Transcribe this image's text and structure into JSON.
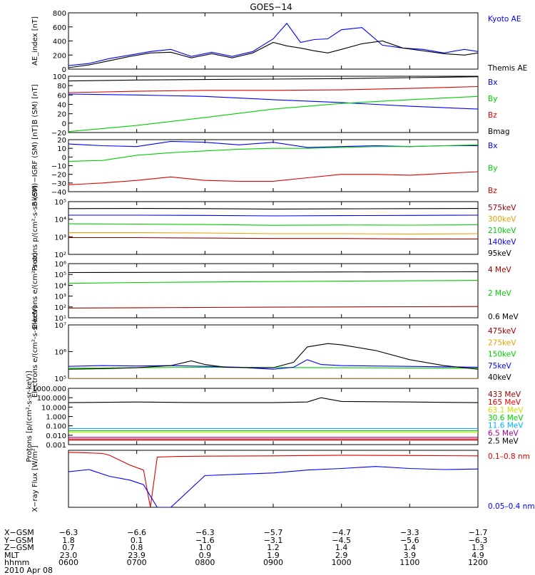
{
  "title": "GOES−14",
  "colors": {
    "black": "#000000",
    "blue": "#0000ff",
    "green": "#00d000",
    "red": "#e00000",
    "orange": "#e8a000",
    "darkred": "#a00000",
    "cyan": "#00b0ff",
    "purple": "#a000a0",
    "lime": "#c8e600"
  },
  "chart_data": [
    {
      "id": "ae",
      "type": "line",
      "ylabel": "AE_index [nT]",
      "ylim": [
        0,
        800
      ],
      "log": false,
      "yticks": [
        "0",
        "200",
        "400",
        "600",
        "800"
      ],
      "series": [
        {
          "name": "Kyoto AE",
          "color": "#0000ff",
          "x": [
            6.0,
            6.3,
            6.6,
            6.9,
            7.2,
            7.5,
            7.8,
            8.1,
            8.4,
            8.7,
            9.0,
            9.2,
            9.4,
            9.6,
            9.8,
            10.0,
            10.3,
            10.6,
            10.9,
            11.2,
            11.5,
            11.8,
            12.0
          ],
          "y": [
            50,
            80,
            150,
            200,
            250,
            280,
            180,
            240,
            180,
            250,
            430,
            650,
            380,
            420,
            430,
            560,
            590,
            340,
            300,
            280,
            230,
            280,
            250
          ]
        },
        {
          "name": "Themis AE",
          "color": "#000000",
          "x": [
            6.0,
            6.3,
            6.6,
            6.9,
            7.2,
            7.5,
            7.8,
            8.1,
            8.4,
            8.7,
            9.0,
            9.2,
            9.4,
            9.6,
            9.8,
            10.0,
            10.3,
            10.6,
            10.9,
            11.2,
            11.5,
            11.8,
            12.0
          ],
          "y": [
            20,
            60,
            120,
            180,
            230,
            240,
            160,
            220,
            160,
            230,
            380,
            330,
            300,
            260,
            230,
            280,
            360,
            400,
            300,
            260,
            220,
            200,
            230
          ]
        }
      ],
      "legend": [
        {
          "label": "Kyoto AE",
          "color": "#0000ff"
        },
        {
          "label": "Themis AE",
          "color": "#000000"
        }
      ]
    },
    {
      "id": "bsm",
      "type": "line",
      "ylabel": "B (SM) [nT]",
      "ylim": [
        -20,
        100
      ],
      "log": false,
      "yticks": [
        "−20",
        "0",
        "20",
        "40",
        "60",
        "80",
        "100"
      ],
      "series": [
        {
          "name": "Bx",
          "color": "#0000ff",
          "x": [
            6,
            7,
            8,
            9,
            10,
            11,
            12
          ],
          "y": [
            62,
            60,
            57,
            50,
            44,
            36,
            30
          ]
        },
        {
          "name": "By",
          "color": "#00d000",
          "x": [
            6,
            7,
            8,
            9,
            10,
            11,
            12
          ],
          "y": [
            -18,
            -5,
            12,
            30,
            42,
            50,
            57
          ]
        },
        {
          "name": "Bz",
          "color": "#e00000",
          "x": [
            6,
            7,
            8,
            9,
            10,
            11,
            12
          ],
          "y": [
            65,
            68,
            70,
            70,
            71,
            74,
            78
          ]
        },
        {
          "name": "Bmag",
          "color": "#000000",
          "x": [
            6,
            7,
            8,
            9,
            10,
            11,
            12
          ],
          "y": [
            90,
            92,
            93,
            94,
            95,
            97,
            99
          ]
        }
      ],
      "legend": [
        {
          "label": "Bx",
          "color": "#0000ff"
        },
        {
          "label": "By",
          "color": "#00d000"
        },
        {
          "label": "Bz",
          "color": "#e00000"
        },
        {
          "label": "Bmag",
          "color": "#000000"
        }
      ]
    },
    {
      "id": "bigrf",
      "type": "line",
      "ylabel": "B (SM)−IGRF (SM) [nT]",
      "ylim": [
        -40,
        20
      ],
      "log": false,
      "yticks": [
        "−40",
        "−30",
        "−20",
        "−10",
        "0",
        "10",
        "20"
      ],
      "series": [
        {
          "name": "Bx",
          "color": "#0000ff",
          "x": [
            6,
            6.5,
            7.0,
            7.5,
            8.0,
            8.5,
            9.0,
            9.5,
            10,
            10.5,
            11,
            11.5,
            12
          ],
          "y": [
            15,
            13,
            12,
            18,
            17,
            14,
            17,
            11,
            12,
            13,
            12,
            13,
            13
          ]
        },
        {
          "name": "By",
          "color": "#00d000",
          "x": [
            6,
            6.5,
            7.0,
            7.5,
            8.0,
            8.5,
            9.0,
            9.5,
            10,
            10.5,
            11,
            11.5,
            12
          ],
          "y": [
            -5,
            -4,
            2,
            5,
            7,
            9,
            10,
            10,
            11,
            12,
            12,
            13,
            14
          ]
        },
        {
          "name": "Bz",
          "color": "#e00000",
          "x": [
            6,
            6.5,
            7.0,
            7.5,
            8.0,
            8.5,
            9.0,
            9.5,
            10,
            10.5,
            11,
            11.5,
            12
          ],
          "y": [
            -32,
            -30,
            -27,
            -23,
            -27,
            -28,
            -28,
            -24,
            -20,
            -20,
            -21,
            -19,
            -17
          ]
        }
      ],
      "legend": [
        {
          "label": "Bx",
          "color": "#0000ff"
        },
        {
          "label": "By",
          "color": "#00d000"
        },
        {
          "label": "Bz",
          "color": "#e00000"
        }
      ]
    },
    {
      "id": "protons_low",
      "type": "line",
      "ylabel": "Protons p/(cm²-s-sr-keV)",
      "ylim": [
        100,
        100000
      ],
      "log": true,
      "yticks": [
        "10²",
        "10³",
        "10⁴",
        "10⁵"
      ],
      "series": [
        {
          "name": "575keV",
          "color": "#a00000",
          "x": [
            6,
            7,
            8,
            9,
            10,
            11,
            12
          ],
          "y": [
            900,
            900,
            850,
            800,
            800,
            750,
            750
          ]
        },
        {
          "name": "300keV",
          "color": "#e8a000",
          "x": [
            6,
            7,
            8,
            9,
            10,
            11,
            12
          ],
          "y": [
            1700,
            1700,
            1650,
            1500,
            1500,
            1450,
            1500
          ]
        },
        {
          "name": "210keV",
          "color": "#00d000",
          "x": [
            6,
            7,
            8,
            9,
            10,
            11,
            12
          ],
          "y": [
            5500,
            5300,
            5000,
            4500,
            4700,
            4600,
            4800
          ]
        },
        {
          "name": "140keV",
          "color": "#0000ff",
          "x": [
            6,
            7,
            8,
            9,
            10,
            11,
            12
          ],
          "y": [
            17000,
            17000,
            16500,
            15500,
            16000,
            16500,
            17000
          ]
        },
        {
          "name": "95keV",
          "color": "#000000",
          "x": [
            6,
            7,
            8,
            9,
            10,
            11,
            12
          ],
          "y": [
            40000,
            41000,
            40000,
            38000,
            39000,
            40000,
            41000
          ]
        }
      ],
      "legend": [
        {
          "label": "575keV",
          "color": "#a00000"
        },
        {
          "label": "300keV",
          "color": "#e8a000"
        },
        {
          "label": "210keV",
          "color": "#00d000"
        },
        {
          "label": "140keV",
          "color": "#0000ff"
        },
        {
          "label": "95keV",
          "color": "#000000"
        }
      ]
    },
    {
      "id": "electrons_mev",
      "type": "line",
      "ylabel": "Electrons e/(cm²-s-sr)",
      "ylim": [
        10,
        1000000
      ],
      "log": true,
      "yticks": [
        "10¹",
        "10²",
        "10³",
        "10⁴",
        "10⁵",
        "10⁶"
      ],
      "series": [
        {
          "name": "4 MeV",
          "color": "#a00000",
          "x": [
            6,
            7,
            8,
            9,
            10,
            11,
            12
          ],
          "y": [
            80,
            85,
            90,
            95,
            100,
            105,
            110
          ]
        },
        {
          "name": "2 MeV",
          "color": "#00d000",
          "x": [
            6,
            7,
            8,
            9,
            10,
            11,
            12
          ],
          "y": [
            15000,
            18000,
            20000,
            22000,
            24000,
            26000,
            28000
          ]
        },
        {
          "name": "0.6 MeV",
          "color": "#000000",
          "x": [
            6,
            7,
            8,
            9,
            10,
            11,
            12
          ],
          "y": [
            150000,
            155000,
            160000,
            165000,
            170000,
            175000,
            180000
          ]
        }
      ],
      "legend": [
        {
          "label": "4 MeV",
          "color": "#a00000"
        },
        {
          "label": "2 MeV",
          "color": "#00d000"
        },
        {
          "label": "0.6 MeV",
          "color": "#000000"
        }
      ]
    },
    {
      "id": "electrons_kev",
      "type": "line",
      "ylabel": "Electrons e/(cm²-s-sr-keV)",
      "ylim": [
        100000,
        10000000
      ],
      "log": true,
      "yticks": [
        "10⁵",
        "10⁶",
        "10⁷"
      ],
      "series": [
        {
          "name": "475keV",
          "color": "#a00000",
          "x": [
            6,
            12
          ],
          "y": [
            100000,
            100000
          ]
        },
        {
          "name": "275keV",
          "color": "#e8a000",
          "x": [
            6,
            12
          ],
          "y": [
            100000,
            100000
          ]
        },
        {
          "name": "150keV",
          "color": "#00d000",
          "x": [
            6,
            7,
            8,
            9,
            10,
            11,
            12
          ],
          "y": [
            240000,
            250000,
            260000,
            255000,
            250000,
            245000,
            240000
          ]
        },
        {
          "name": "75keV",
          "color": "#0000ff",
          "x": [
            6,
            6.5,
            7.0,
            7.5,
            8.0,
            8.5,
            9.0,
            9.3,
            9.5,
            9.7,
            10.0,
            10.5,
            11,
            11.5,
            12
          ],
          "y": [
            280000,
            300000,
            290000,
            300000,
            280000,
            260000,
            220000,
            260000,
            500000,
            330000,
            300000,
            290000,
            280000,
            270000,
            260000
          ]
        },
        {
          "name": "40keV",
          "color": "#000000",
          "x": [
            6,
            6.5,
            7.0,
            7.5,
            7.8,
            8.0,
            8.3,
            8.7,
            9.0,
            9.3,
            9.5,
            9.8,
            10.0,
            10.5,
            11.0,
            11.5,
            12
          ],
          "y": [
            220000,
            230000,
            250000,
            300000,
            450000,
            330000,
            260000,
            250000,
            250000,
            400000,
            1500000,
            2000000,
            1800000,
            1100000,
            500000,
            300000,
            220000
          ]
        }
      ],
      "legend": [
        {
          "label": "475keV",
          "color": "#a00000"
        },
        {
          "label": "275keV",
          "color": "#e8a000"
        },
        {
          "label": "150keV",
          "color": "#00d000"
        },
        {
          "label": "75keV",
          "color": "#0000ff"
        },
        {
          "label": "40keV",
          "color": "#000000"
        }
      ]
    },
    {
      "id": "protons_high",
      "type": "line",
      "ylabel": "Protons [p/(cm²-s-sr-keV)]",
      "ylim": [
        0.001,
        1000
      ],
      "log": true,
      "yticks": [
        "0.001",
        "0.010",
        "0.100",
        "1.000",
        "10.000",
        "100.000",
        "1000.000"
      ],
      "series": [
        {
          "name": "433 MeV",
          "color": "#a00000",
          "x": [
            6,
            12
          ],
          "y": [
            0.003,
            0.003
          ]
        },
        {
          "name": "165 MeV",
          "color": "#e00000",
          "x": [
            6,
            12
          ],
          "y": [
            0.004,
            0.004
          ]
        },
        {
          "name": "63.1 MeV",
          "color": "#c8e600",
          "x": [
            6,
            12
          ],
          "y": [
            0.02,
            0.02
          ]
        },
        {
          "name": "30.6 MeV",
          "color": "#00d000",
          "x": [
            6,
            12
          ],
          "y": [
            0.03,
            0.03
          ]
        },
        {
          "name": "11.6 MeV",
          "color": "#00b0ff",
          "x": [
            6,
            12
          ],
          "y": [
            0.05,
            0.05
          ]
        },
        {
          "name": "6.5 MeV",
          "color": "#a000a0",
          "x": [
            6,
            12
          ],
          "y": [
            0.006,
            0.006
          ]
        },
        {
          "name": "2.5 MeV",
          "color": "#000000",
          "x": [
            6,
            7,
            8,
            9,
            9.5,
            9.7,
            10,
            11,
            12
          ],
          "y": [
            30,
            35,
            30,
            30,
            35,
            100,
            40,
            35,
            30
          ]
        }
      ],
      "legend": [
        {
          "label": "433 MeV",
          "color": "#a00000"
        },
        {
          "label": "165 MeV",
          "color": "#e00000"
        },
        {
          "label": "63.1 MeV",
          "color": "#c8e600"
        },
        {
          "label": "30.6 MeV",
          "color": "#00d000"
        },
        {
          "label": "11.6 MeV",
          "color": "#00b0ff"
        },
        {
          "label": "6.5 MeV",
          "color": "#a000a0"
        },
        {
          "label": "2.5 MeV",
          "color": "#000000"
        }
      ]
    },
    {
      "id": "xray",
      "type": "line",
      "ylabel": "X−ray Flux [W/m²]",
      "ylim": [
        1e-09,
        1e-08
      ],
      "log": true,
      "yticks": [],
      "series": [
        {
          "name": "0.1–0.8 nm",
          "color": "#e00000",
          "x": [
            6.0,
            6.2,
            6.5,
            6.6,
            6.9,
            7.1,
            7.2,
            7.3,
            7.6,
            8.0,
            9.0,
            10.0,
            11.0,
            12.0
          ],
          "y": [
            9.2e-09,
            9.1e-09,
            8.8e-09,
            8.2e-09,
            5.5e-09,
            4.5e-09,
            1e-09,
            7.6e-09,
            7.8e-09,
            7.9e-09,
            8e-09,
            8.2e-09,
            8.1e-09,
            8e-09
          ]
        },
        {
          "name": "0.05–0.4 nm",
          "color": "#0000ff",
          "x": [
            6.0,
            6.3,
            6.6,
            6.9,
            7.1,
            7.3,
            7.5,
            8.0,
            8.5,
            9.0,
            9.5,
            10.0,
            10.5,
            11.0,
            11.5,
            12.0
          ],
          "y": [
            4.2e-09,
            4.6e-09,
            3.5e-09,
            3e-09,
            2.5e-09,
            1e-09,
            1e-09,
            3.6e-09,
            3.8e-09,
            4e-09,
            4.5e-09,
            4.8e-09,
            5.2e-09,
            4.8e-09,
            4.6e-09,
            4.7e-09
          ]
        }
      ],
      "legend": [
        {
          "label": "0.1–0.8 nm",
          "color": "#e00000"
        },
        {
          "label": "0.05–0.4 nm",
          "color": "#0000ff"
        }
      ]
    }
  ],
  "ephemeris": {
    "rows": [
      {
        "label": "X−GSM",
        "values": [
          "−6.3",
          "−6.6",
          "−6.3",
          "−5.7",
          "−4.7",
          "−3.3",
          "−1.7"
        ]
      },
      {
        "label": "Y−GSM",
        "values": [
          "1.8",
          "0.1",
          "−1.6",
          "−3.1",
          "−4.5",
          "−5.6",
          "−6.3"
        ]
      },
      {
        "label": "Z−GSM",
        "values": [
          "0.7",
          "0.8",
          "1.0",
          "1.2",
          "1.4",
          "1.4",
          "1.3"
        ]
      },
      {
        "label": "MLT",
        "values": [
          "23.0",
          "23.9",
          "0.9",
          "1.9",
          "2.9",
          "3.9",
          "4.9"
        ]
      },
      {
        "label": "hhmm",
        "values": [
          "0600",
          "0700",
          "0800",
          "0900",
          "1000",
          "1100",
          "1200"
        ]
      }
    ],
    "date": "2010 Apr 08"
  }
}
